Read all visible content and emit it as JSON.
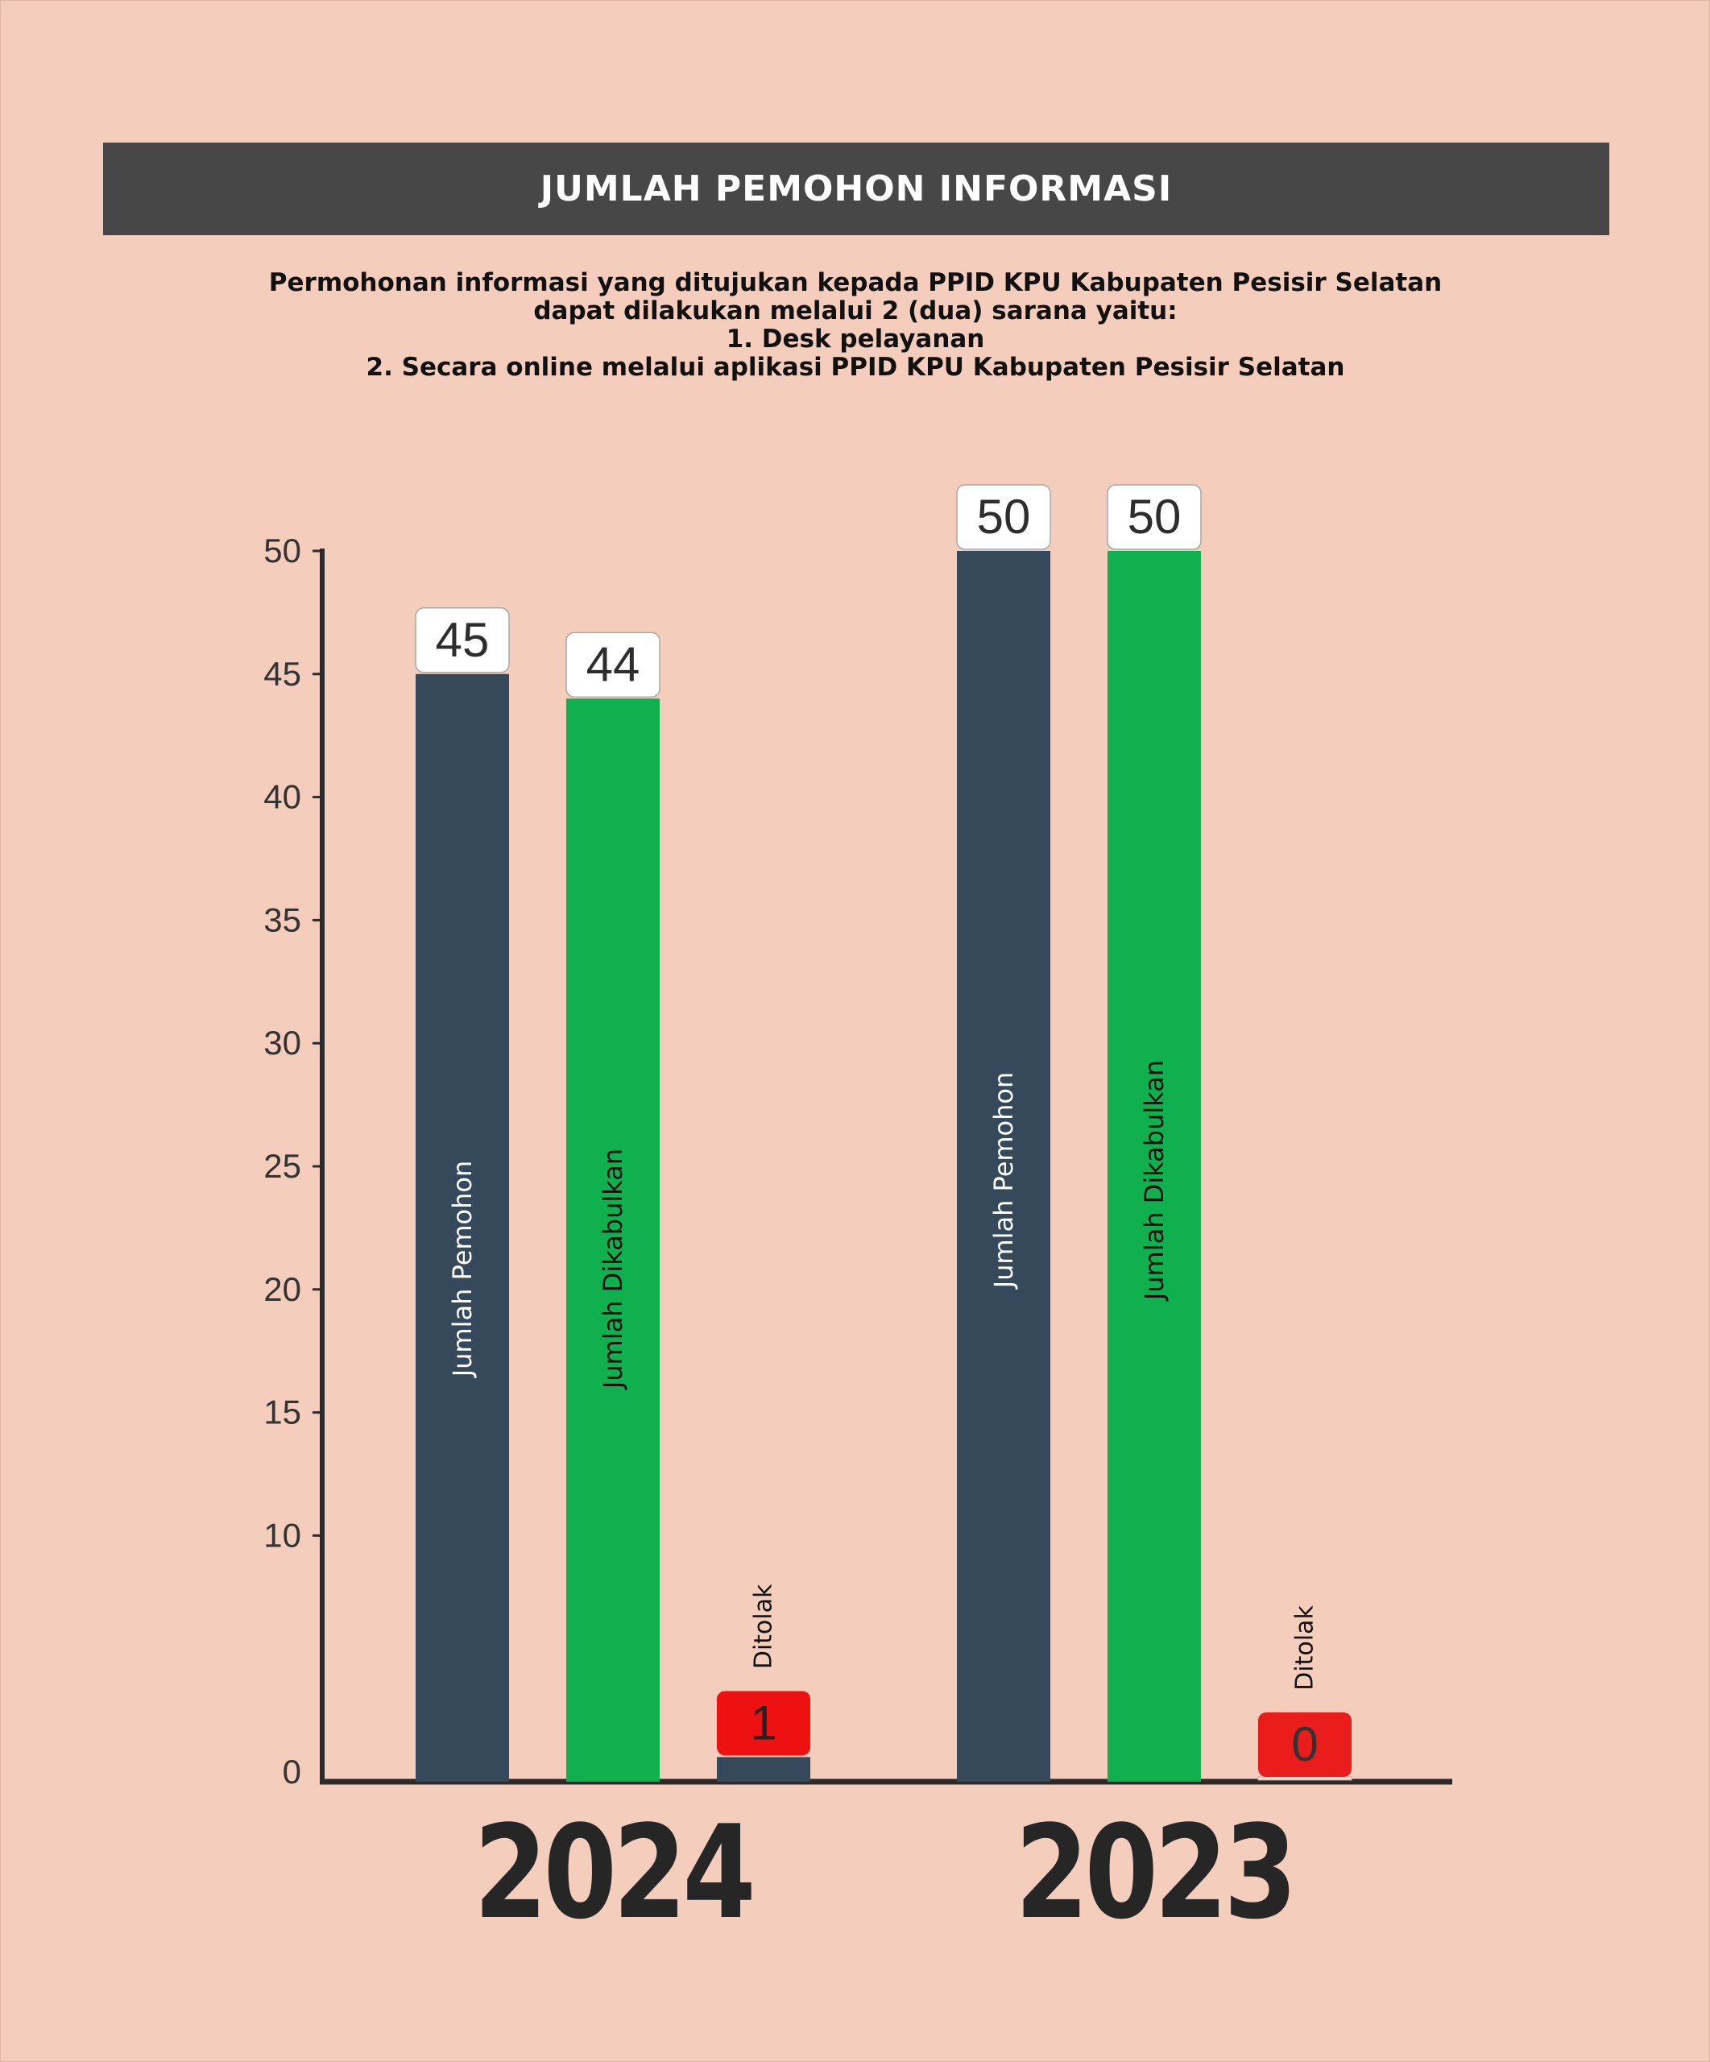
{
  "header": {
    "title": "JUMLAH PEMOHON INFORMASI",
    "description": [
      "Permohonan informasi yang ditujukan kepada PPID KPU Kabupaten Pesisir Selatan",
      "dapat dilakukan melalui 2 (dua) sarana yaitu:",
      "1. Desk pelayanan",
      "2. Secara online melalui aplikasi PPID KPU Kabupaten Pesisir Selatan"
    ]
  },
  "colors": {
    "background": "#f5cdbd",
    "title_bar": "#474747",
    "pemohon": "#35495b",
    "dikabulkan": "#10b04e",
    "ditolak_label": "#ea1c1c",
    "axis": "#2b2b2b"
  },
  "chart_data": {
    "type": "bar",
    "categories": [
      "2024",
      "2023"
    ],
    "series": [
      {
        "name": "Jumlah Pemohon",
        "values": [
          45,
          50
        ]
      },
      {
        "name": "Jumlah Dikabulkan",
        "values": [
          44,
          50
        ]
      },
      {
        "name": "Ditolak",
        "values": [
          1,
          0
        ]
      }
    ],
    "ylim": [
      0,
      50
    ],
    "yticks": [
      0,
      10,
      15,
      20,
      25,
      30,
      35,
      40,
      45,
      50
    ],
    "grid": false,
    "legend": "none"
  }
}
